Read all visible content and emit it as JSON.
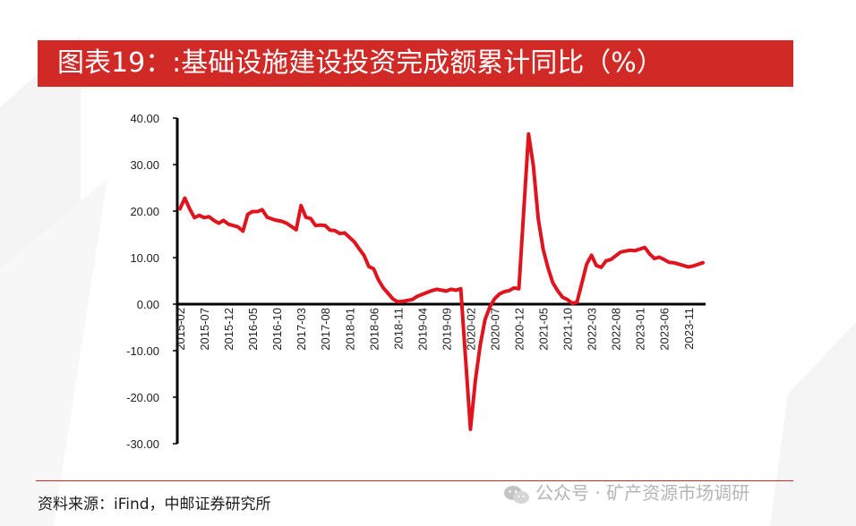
{
  "title": "图表19：:基础设施建设投资完成额累计同比（%）",
  "source": "资料来源：iFind，中邮证券研究所",
  "watermark": "公众号 · 矿产资源市场调研",
  "colors": {
    "title_bg": "#d12a26",
    "line": "#e0141e",
    "axis": "#000000"
  },
  "chart_data": {
    "type": "line",
    "title": "",
    "xlabel": "",
    "ylabel": "",
    "ylim": [
      -30,
      40
    ],
    "yticks": [
      40,
      30,
      20,
      10,
      0,
      -10,
      -20,
      -30
    ],
    "ytick_labels": [
      "40.00",
      "30.00",
      "20.00",
      "10.00",
      "0.00",
      "-10.00",
      "-20.00",
      "-30.00"
    ],
    "xtick_labels": [
      "2015-02",
      "2015-07",
      "2015-12",
      "2016-05",
      "2016-10",
      "2017-03",
      "2017-08",
      "2018-01",
      "2018-06",
      "2018-11",
      "2019-04",
      "2019-09",
      "2020-02",
      "2020-07",
      "2020-12",
      "2021-05",
      "2021-10",
      "2022-03",
      "2022-08",
      "2023-01",
      "2023-06",
      "2023-11"
    ],
    "grid": false,
    "series": [
      {
        "x": [
          "2015-02",
          "2015-03",
          "2015-04",
          "2015-05",
          "2015-06",
          "2015-07",
          "2015-08",
          "2015-09",
          "2015-10",
          "2015-11",
          "2015-12",
          "2016-02",
          "2016-03",
          "2016-04",
          "2016-05",
          "2016-06",
          "2016-07",
          "2016-08",
          "2016-09",
          "2016-10",
          "2016-11",
          "2016-12",
          "2017-02",
          "2017-03",
          "2017-04",
          "2017-05",
          "2017-06",
          "2017-07",
          "2017-08",
          "2017-09",
          "2017-10",
          "2017-11",
          "2017-12",
          "2018-02",
          "2018-03",
          "2018-04",
          "2018-05",
          "2018-06",
          "2018-07",
          "2018-08",
          "2018-09",
          "2018-10",
          "2018-11",
          "2018-12",
          "2019-02",
          "2019-03",
          "2019-04",
          "2019-05",
          "2019-06",
          "2019-07",
          "2019-08",
          "2019-09",
          "2019-10",
          "2019-11",
          "2019-12",
          "2020-02",
          "2020-03",
          "2020-04",
          "2020-05",
          "2020-06",
          "2020-07",
          "2020-08",
          "2020-09",
          "2020-10",
          "2020-11",
          "2020-12",
          "2021-02",
          "2021-03",
          "2021-04",
          "2021-05",
          "2021-06",
          "2021-07",
          "2021-08",
          "2021-09",
          "2021-10",
          "2021-11",
          "2021-12",
          "2022-02",
          "2022-03",
          "2022-04",
          "2022-05",
          "2022-06",
          "2022-07",
          "2022-08",
          "2022-09",
          "2022-10",
          "2022-11",
          "2022-12",
          "2023-02",
          "2023-03",
          "2023-04",
          "2023-05",
          "2023-06",
          "2023-07",
          "2023-08",
          "2023-09",
          "2023-10",
          "2023-11",
          "2023-12",
          "2024-02"
        ],
        "values": [
          20.5,
          22.8,
          20.5,
          18.6,
          19.1,
          18.6,
          18.8,
          18.0,
          17.4,
          18.0,
          17.2,
          16.6,
          15.7,
          19.3,
          19.9,
          19.9,
          20.3,
          18.7,
          18.3,
          18.0,
          17.8,
          17.4,
          16.0,
          21.2,
          18.7,
          18.4,
          16.9,
          17.0,
          16.9,
          15.9,
          15.8,
          15.2,
          15.3,
          13.4,
          11.9,
          10.5,
          8.1,
          7.6,
          5.2,
          3.5,
          2.3,
          1.1,
          0.5,
          0.6,
          1.0,
          1.7,
          2.1,
          2.5,
          2.9,
          3.2,
          3.0,
          2.8,
          3.2,
          3.0,
          3.3,
          -26.9,
          -16.4,
          -8.8,
          -3.3,
          -0.6,
          1.2,
          2.2,
          2.7,
          2.9,
          3.5,
          3.3,
          36.6,
          29.7,
          18.4,
          11.8,
          7.8,
          4.6,
          2.9,
          1.5,
          1.0,
          0.2,
          0.4,
          8.6,
          10.5,
          8.3,
          7.9,
          9.3,
          9.6,
          10.4,
          11.2,
          11.4,
          11.6,
          11.5,
          12.2,
          10.8,
          9.8,
          10.1,
          9.6,
          9.0,
          8.9,
          8.6,
          8.3,
          8.0,
          8.2,
          8.9
        ]
      }
    ]
  }
}
